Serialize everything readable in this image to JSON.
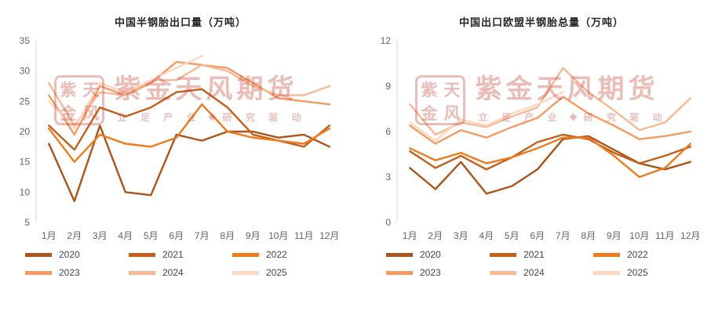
{
  "watermark": {
    "seal": [
      "紫",
      "天",
      "金",
      "风"
    ],
    "brand": "紫金天风期货",
    "slogan_left": "立 足 产 业",
    "slogan_right": "研 究 驱 动",
    "color": "#c0392b"
  },
  "chart_data": [
    {
      "type": "line",
      "title": "中国半钢胎出口量（万吨）",
      "categories": [
        "1月",
        "2月",
        "3月",
        "4月",
        "5月",
        "6月",
        "7月",
        "8月",
        "9月",
        "10月",
        "11月",
        "12月"
      ],
      "ylim": [
        5,
        35
      ],
      "yticks": [
        5,
        10,
        15,
        20,
        25,
        30,
        35
      ],
      "grid": false,
      "legend_position": "bottom",
      "series": [
        {
          "name": "2020",
          "color": "#a9551d",
          "values": [
            18,
            8.5,
            21,
            10,
            9.5,
            19.5,
            18.5,
            20,
            20,
            19,
            19.5,
            17.5
          ]
        },
        {
          "name": "2021",
          "color": "#c2601a",
          "values": [
            21,
            17,
            24,
            22.5,
            24,
            26.5,
            27,
            24,
            19.5,
            18.5,
            17.5,
            21
          ]
        },
        {
          "name": "2022",
          "color": "#ee7a1c",
          "values": [
            20.5,
            15,
            19.5,
            18,
            17.5,
            19,
            24.5,
            20,
            19,
            18.5,
            18,
            20.5
          ]
        },
        {
          "name": "2023",
          "color": "#f49a63",
          "values": [
            26,
            19.5,
            27.5,
            26,
            28,
            31.5,
            31,
            30.5,
            28,
            25.5,
            25,
            24.5
          ]
        },
        {
          "name": "2024",
          "color": "#f7b893",
          "values": [
            28,
            21,
            26.5,
            26,
            28.5,
            28.5,
            31,
            30,
            27.5,
            26,
            26,
            27.5
          ]
        },
        {
          "name": "2025",
          "color": "#fbd7c0",
          "values": [
            25,
            20.5,
            28,
            26.5,
            28.5,
            30.5,
            32.5,
            null,
            null,
            null,
            null,
            null
          ]
        }
      ]
    },
    {
      "type": "line",
      "title": "中国出口欧盟半钢胎总量（万吨）",
      "categories": [
        "1月",
        "2月",
        "3月",
        "4月",
        "5月",
        "6月",
        "7月",
        "8月",
        "9月",
        "10月",
        "11月",
        "12月"
      ],
      "ylim": [
        0,
        12
      ],
      "yticks": [
        0,
        3,
        6,
        9,
        12
      ],
      "grid": false,
      "legend_position": "bottom",
      "series": [
        {
          "name": "2020",
          "color": "#a9551d",
          "values": [
            3.6,
            2.2,
            4.0,
            1.9,
            2.4,
            3.5,
            5.5,
            5.7,
            4.8,
            3.9,
            3.5,
            4.0
          ]
        },
        {
          "name": "2021",
          "color": "#c2601a",
          "values": [
            4.7,
            3.6,
            4.4,
            3.5,
            4.3,
            5.3,
            5.8,
            5.5,
            4.6,
            3.9,
            4.4,
            5.0
          ]
        },
        {
          "name": "2022",
          "color": "#ee7a1c",
          "values": [
            4.9,
            4.1,
            4.6,
            3.9,
            4.3,
            4.9,
            5.6,
            5.6,
            4.4,
            3.0,
            3.6,
            5.2
          ]
        },
        {
          "name": "2023",
          "color": "#f49a63",
          "values": [
            6.4,
            5.2,
            6.1,
            5.6,
            6.3,
            6.9,
            8.3,
            7.2,
            6.4,
            5.5,
            5.7,
            6.0
          ]
        },
        {
          "name": "2024",
          "color": "#f7b893",
          "values": [
            7.8,
            5.8,
            6.6,
            6.3,
            7.0,
            7.6,
            10.2,
            8.6,
            7.4,
            6.1,
            6.6,
            8.2
          ]
        },
        {
          "name": "2025",
          "color": "#fbd7c0",
          "values": [
            6.6,
            5.4,
            6.8,
            6.4,
            7.2,
            7.8,
            8.6,
            null,
            null,
            null,
            null,
            null
          ]
        }
      ]
    }
  ]
}
